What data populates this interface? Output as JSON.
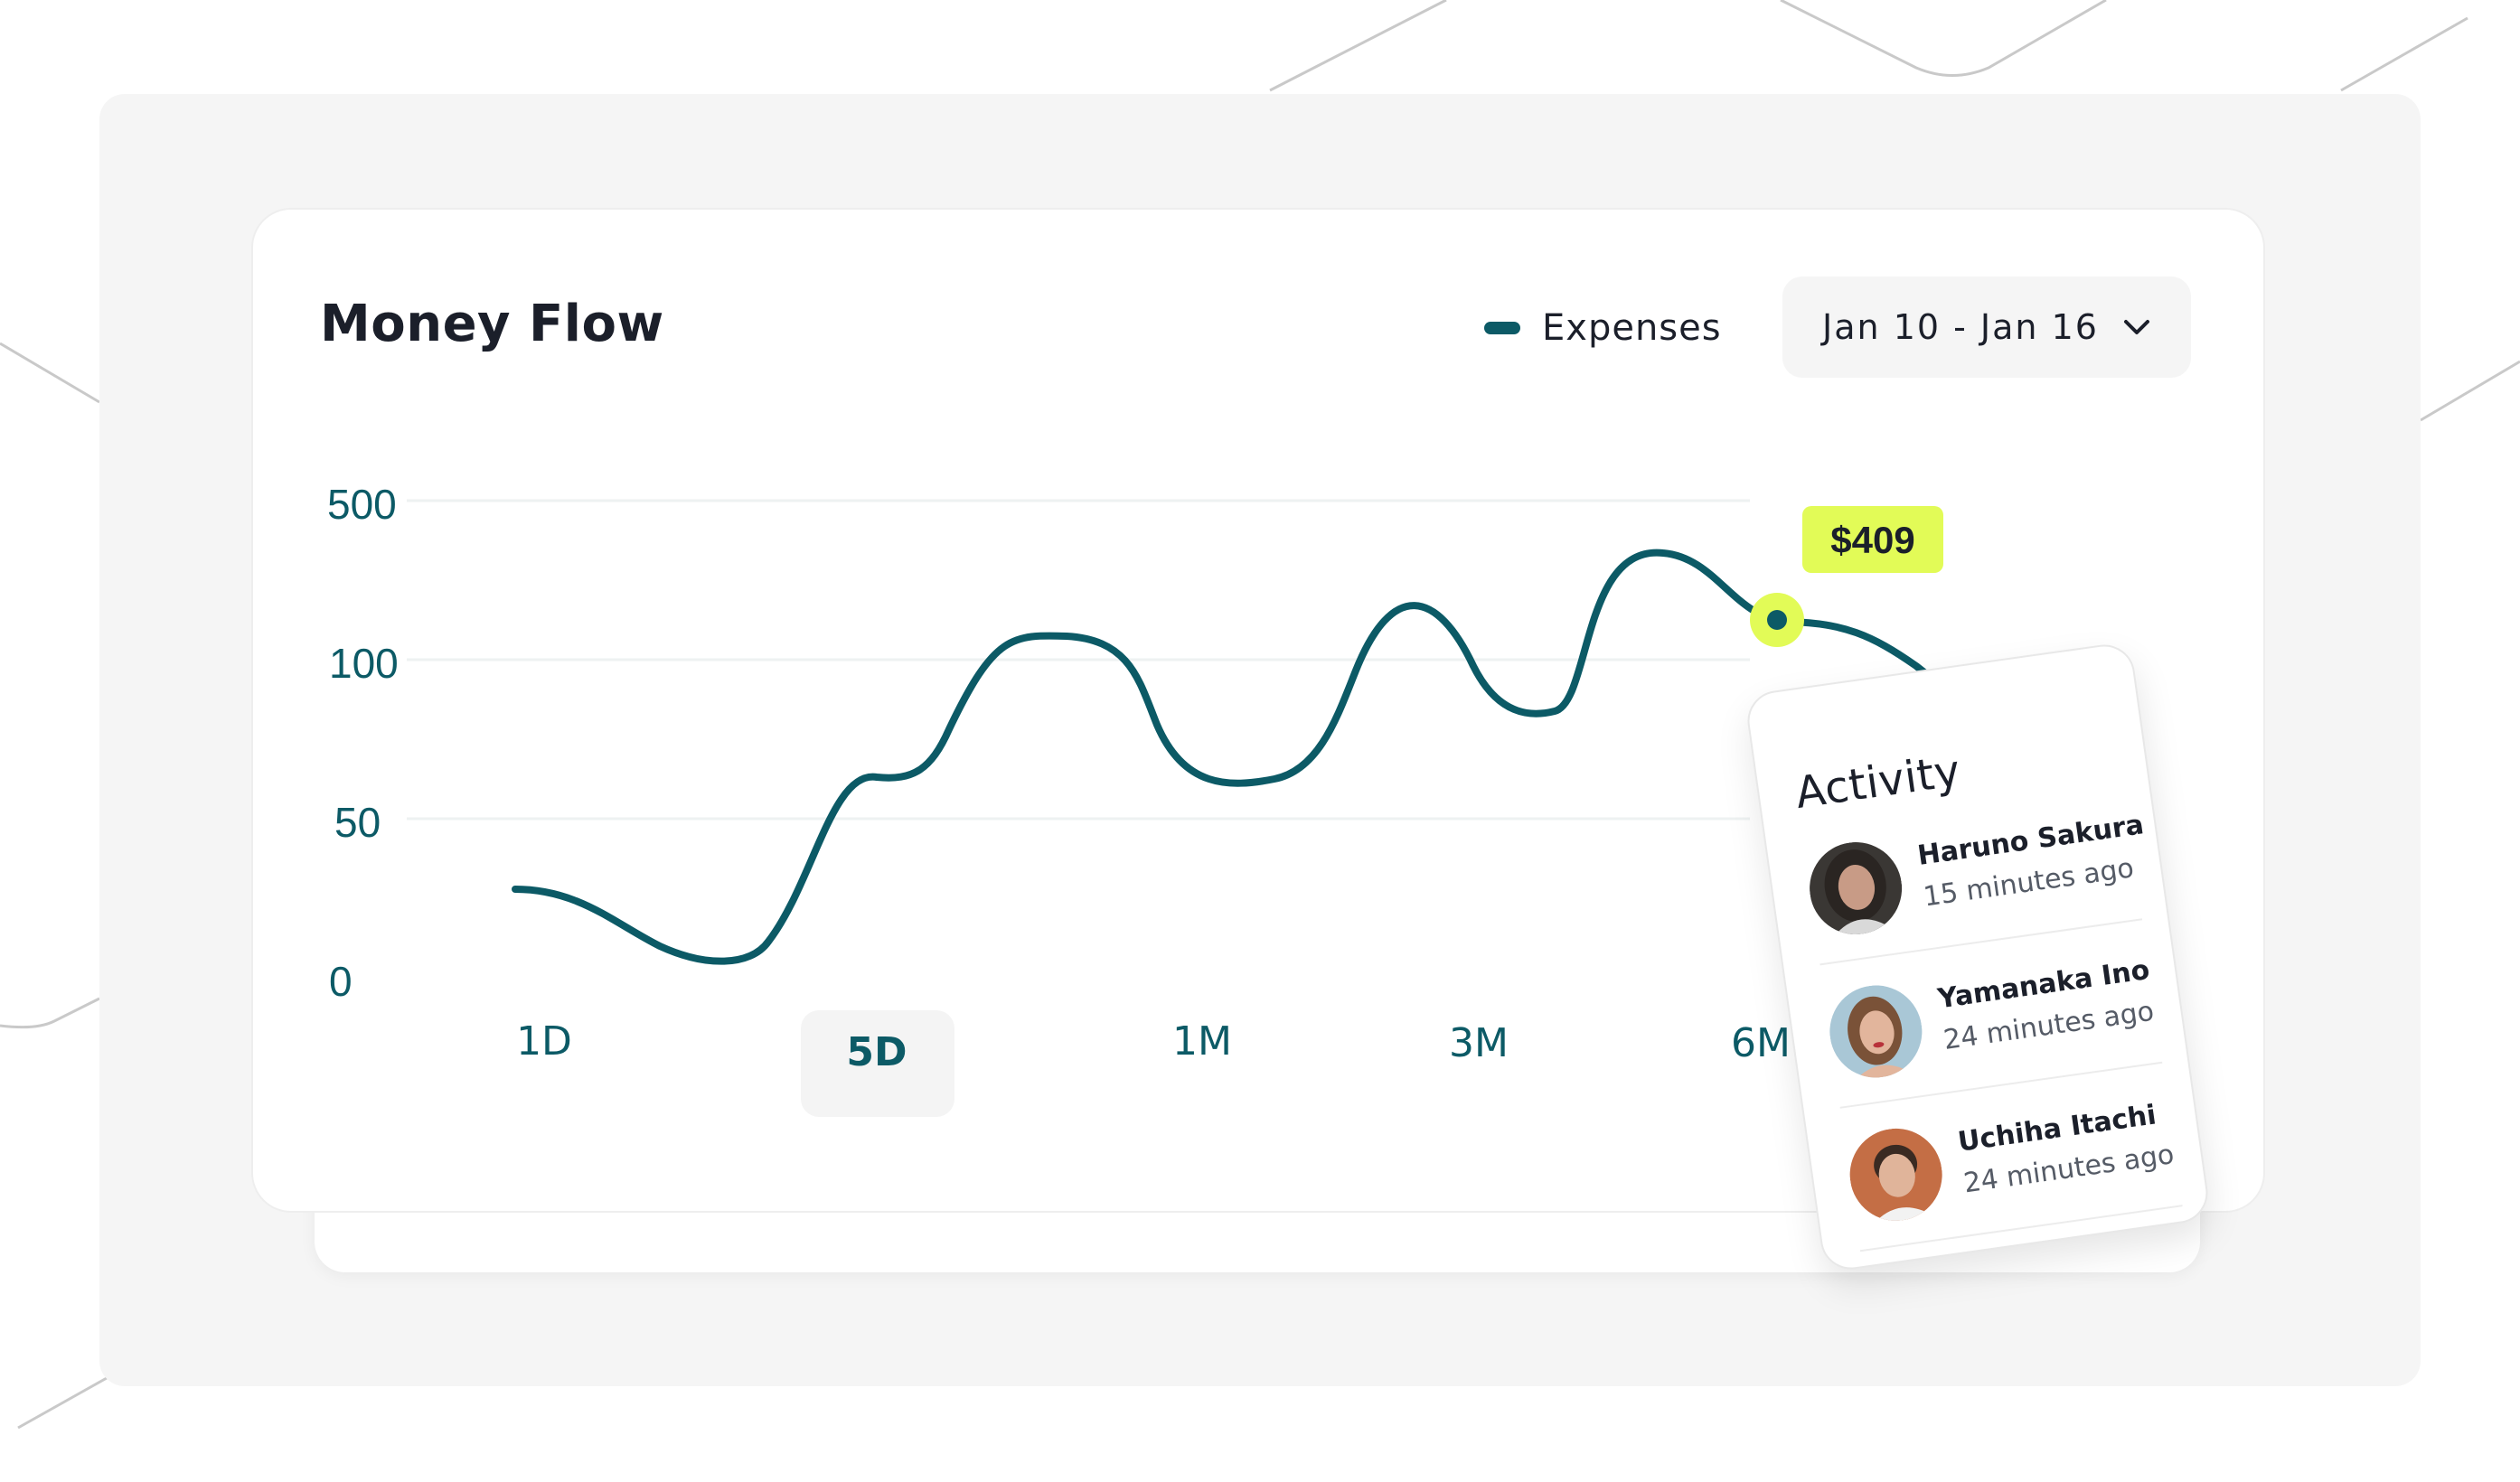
{
  "card": {
    "title": "Money Flow",
    "legend_label": "Expenses",
    "date_range": "Jan 10 - Jan 16"
  },
  "colors": {
    "line": "#0c5a66",
    "highlight": "#e2fb57",
    "panel": "#f5f5f5"
  },
  "chart_data": {
    "type": "line",
    "title": "Money Flow",
    "series": [
      {
        "name": "Expenses"
      }
    ],
    "y_tick_labels": [
      "500",
      "100",
      "50",
      "0"
    ],
    "x_tick_labels": [
      "1D",
      "5D",
      "1M",
      "3M",
      "6M"
    ],
    "active_period": "5D",
    "highlight_value": "$409",
    "grid": true,
    "legend_position": "top-right"
  },
  "tabs": [
    {
      "label": "1D"
    },
    {
      "label": "5D"
    },
    {
      "label": "1M"
    },
    {
      "label": "3M"
    },
    {
      "label": "6M"
    }
  ],
  "activity": {
    "title": "Activity",
    "items": [
      {
        "name": "Haruno Sakura",
        "time": "15 minutes ago"
      },
      {
        "name": "Yamanaka Ino",
        "time": "24 minutes ago"
      },
      {
        "name": "Uchiha Itachi",
        "time": "24 minutes ago"
      }
    ]
  }
}
